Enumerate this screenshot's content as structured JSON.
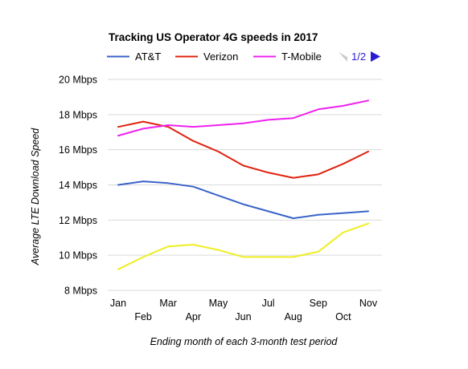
{
  "chart_data": {
    "type": "line",
    "title": "Tracking US Operator 4G speeds in 2017",
    "xlabel": "Ending month of each 3-month test period",
    "ylabel": "Average LTE Download Speed",
    "categories": [
      "Jan",
      "Feb",
      "Mar",
      "Apr",
      "May",
      "Jun",
      "Jul",
      "Aug",
      "Sep",
      "Oct",
      "Nov"
    ],
    "ylim": [
      8,
      20
    ],
    "yticks": [
      8,
      10,
      12,
      14,
      16,
      18,
      20
    ],
    "ytick_labels": [
      "8 Mbps",
      "10 Mbps",
      "12 Mbps",
      "14 Mbps",
      "16 Mbps",
      "18 Mbps",
      "20 Mbps"
    ],
    "grid": "horizontal",
    "legend_position": "top",
    "series": [
      {
        "name": "AT&T",
        "color": "#3a63c8",
        "values": [
          14.0,
          14.2,
          14.1,
          13.9,
          13.4,
          12.9,
          12.5,
          12.1,
          12.3,
          12.4,
          12.5
        ]
      },
      {
        "name": "Verizon",
        "color": "#e0220f",
        "values": [
          17.3,
          17.6,
          17.3,
          16.5,
          15.9,
          15.1,
          14.7,
          14.4,
          14.6,
          15.2,
          15.9
        ]
      },
      {
        "name": "T-Mobile",
        "color": "#ee22ee",
        "values": [
          16.8,
          17.2,
          17.4,
          17.3,
          17.4,
          17.5,
          17.7,
          17.8,
          18.3,
          18.5,
          18.8
        ]
      },
      {
        "color": "#eeee22",
        "values": [
          9.2,
          9.9,
          10.5,
          10.6,
          10.3,
          9.9,
          9.9,
          9.9,
          10.2,
          11.3,
          11.8
        ]
      }
    ]
  },
  "legend_pager": {
    "label": "1/2",
    "prev_icon": "triangle-left-icon",
    "next_icon": "triangle-right-icon",
    "prev_color": "#cccccc",
    "next_color": "#2a1bd6",
    "label_color": "#2a1bd6"
  }
}
